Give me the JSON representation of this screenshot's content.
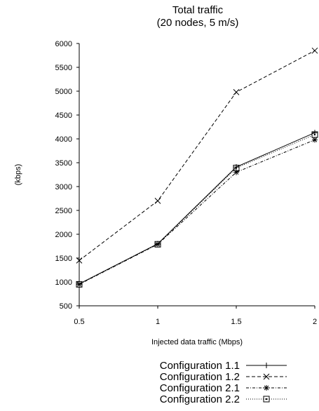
{
  "chart_data": {
    "type": "line",
    "title": "Total traffic",
    "subtitle": "(20 nodes, 5 m/s)",
    "xlabel": "Injected data traffic (Mbps)",
    "ylabel": "(kbps)",
    "x": [
      0.5,
      1,
      1.5,
      2
    ],
    "x_tick_labels": [
      "0.5",
      "1",
      "1.5",
      "2"
    ],
    "xlim": [
      0.5,
      2
    ],
    "ylim": [
      500,
      6000
    ],
    "y_ticks": [
      500,
      1000,
      1500,
      2000,
      2500,
      3000,
      3500,
      4000,
      4500,
      5000,
      5500,
      6000
    ],
    "y_tick_labels": [
      "500",
      "1000",
      "1500",
      "2000",
      "2500",
      "3000",
      "3500",
      "4000",
      "4500",
      "5000",
      "5500",
      "6000"
    ],
    "grid": false,
    "legend_position": "bottom-center",
    "series": [
      {
        "name": "Configuration 1.1",
        "values": [
          960,
          1800,
          3410,
          4130
        ],
        "line_style": "solid",
        "marker": "plus"
      },
      {
        "name": "Configuration 1.2",
        "values": [
          1450,
          2700,
          4980,
          5850
        ],
        "line_style": "dashed",
        "marker": "x"
      },
      {
        "name": "Configuration 2.1",
        "values": [
          950,
          1790,
          3300,
          3980
        ],
        "line_style": "dash-dot",
        "marker": "star"
      },
      {
        "name": "Configuration 2.2",
        "values": [
          950,
          1790,
          3390,
          4090
        ],
        "line_style": "dotted",
        "marker": "square"
      }
    ]
  }
}
